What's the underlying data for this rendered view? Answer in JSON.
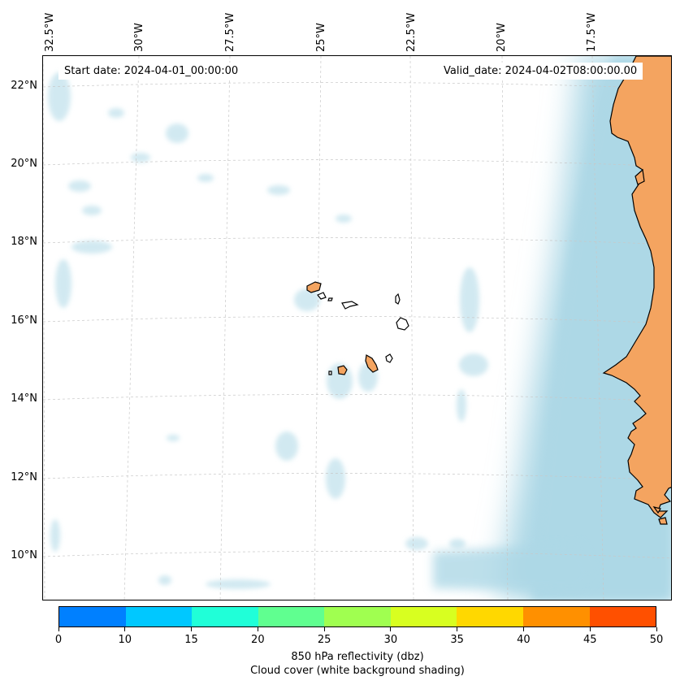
{
  "annotations": {
    "start_date": "Start date: 2024-04-01_00:00:00",
    "valid_date": "Valid_date: 2024-04-02T08:00:00.00"
  },
  "longitude_labels": [
    "32.5°W",
    "30°W",
    "27.5°W",
    "25°W",
    "22.5°W",
    "20°W",
    "17.5°W"
  ],
  "latitude_labels": [
    "22°N",
    "20°N",
    "18°N",
    "16°N",
    "14°N",
    "12°N",
    "10°N"
  ],
  "colorbar": {
    "ticks": [
      "0",
      "10",
      "15",
      "20",
      "25",
      "30",
      "35",
      "40",
      "45",
      "50"
    ],
    "colors": [
      "#0080ff",
      "#00c8ff",
      "#20ffd8",
      "#60ff90",
      "#a0ff50",
      "#d8ff20",
      "#ffd800",
      "#ff9000",
      "#ff5000"
    ],
    "label_line1": "850 hPa reflectivity (dbz)",
    "label_line2": "Cloud cover (white background shading)"
  },
  "colors": {
    "land": "#f4a460",
    "cloud": "#add8e6",
    "coastline": "#000000",
    "gridline": "#c8c8c8"
  },
  "map": {
    "land_features": [
      "west-african-coast",
      "santo-antao",
      "sao-vicente",
      "sao-nicolau",
      "sal",
      "boa-vista",
      "maio",
      "santiago",
      "fogo",
      "brava"
    ]
  }
}
